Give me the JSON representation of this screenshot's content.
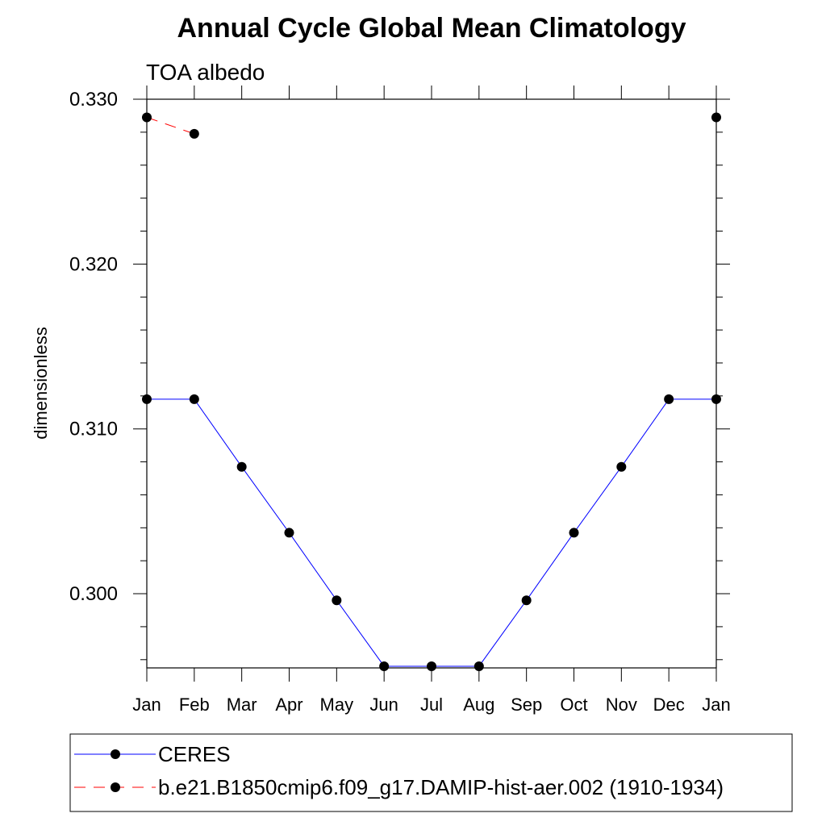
{
  "chart_data": {
    "type": "line",
    "title": "Annual Cycle Global Mean Climatology",
    "subtitle": "TOA albedo",
    "ylabel": "dimensionless",
    "xlabel": "",
    "ylim": [
      0.2955,
      0.33
    ],
    "yticks": [
      0.3,
      0.31,
      0.32,
      0.33
    ],
    "ytick_labels": [
      "0.300",
      "0.310",
      "0.320",
      "0.330"
    ],
    "categories": [
      "Jan",
      "Feb",
      "Mar",
      "Apr",
      "May",
      "Jun",
      "Jul",
      "Aug",
      "Sep",
      "Oct",
      "Nov",
      "Dec",
      "Jan"
    ],
    "series": [
      {
        "name": "CERES",
        "color": "#0000ff",
        "dash": "solid",
        "values": [
          0.3118,
          0.3118,
          0.3077,
          0.3037,
          0.2996,
          0.2956,
          0.2956,
          0.2956,
          0.2996,
          0.3037,
          0.3077,
          0.3118,
          0.3118
        ]
      },
      {
        "name": "b.e21.B1850cmip6.f09_g17.DAMIP-hist-aer.002 (1910-1934)",
        "color": "#ff0000",
        "dash": "dashed",
        "values": [
          0.3289,
          0.3279,
          null,
          null,
          null,
          null,
          null,
          null,
          null,
          null,
          null,
          null,
          0.3289
        ]
      }
    ],
    "grid": false,
    "legend_position": "bottom"
  }
}
